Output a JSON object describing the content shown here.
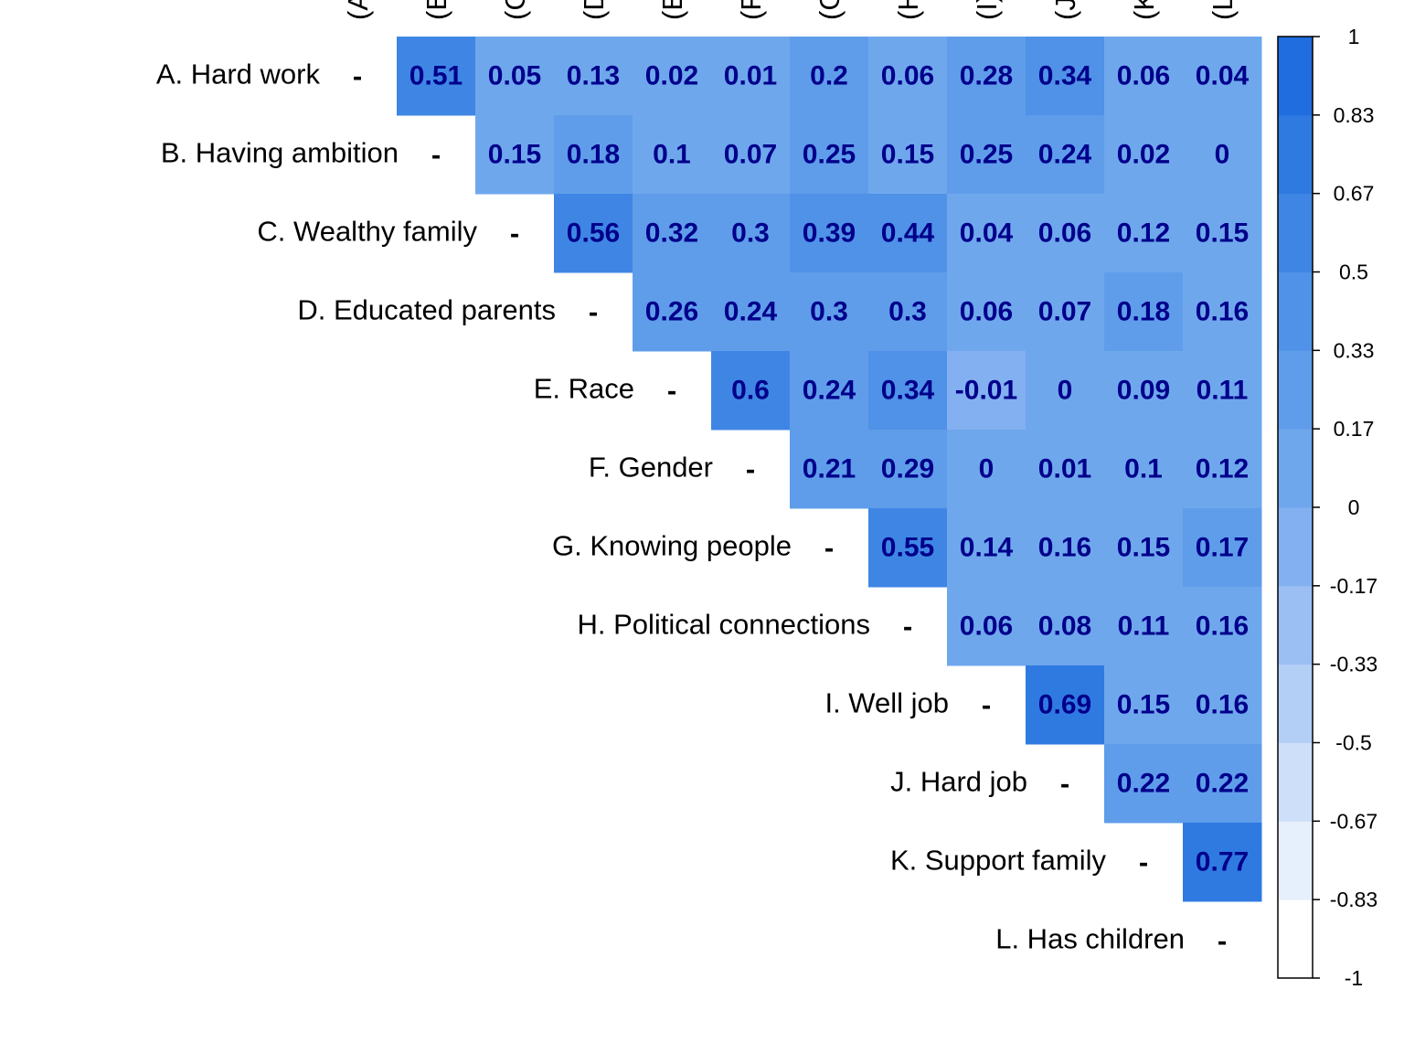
{
  "chart_data": {
    "type": "heatmap",
    "subtype": "upper-triangle correlation matrix",
    "row_labels": [
      "A. Hard work",
      "B. Having ambition",
      "C. Wealthy family",
      "D. Educated parents",
      "E. Race",
      "F. Gender",
      "G. Knowing people",
      "H. Political connections",
      "I. Well job",
      "J. Hard job",
      "K. Support family",
      "L. Has children"
    ],
    "column_labels": [
      "(A)",
      "(B)",
      "(C)",
      "(D)",
      "(E)",
      "(F)",
      "(G)",
      "(H)",
      "(I)",
      "(J)",
      "(K)",
      "(L)"
    ],
    "diagonal_label": "-",
    "matrix": [
      [
        null,
        0.51,
        0.05,
        0.13,
        0.02,
        0.01,
        0.2,
        0.06,
        0.28,
        0.34,
        0.06,
        0.04
      ],
      [
        null,
        null,
        0.15,
        0.18,
        0.1,
        0.07,
        0.25,
        0.15,
        0.25,
        0.24,
        0.02,
        0
      ],
      [
        null,
        null,
        null,
        0.56,
        0.32,
        0.3,
        0.39,
        0.44,
        0.04,
        0.06,
        0.12,
        0.15
      ],
      [
        null,
        null,
        null,
        null,
        0.26,
        0.24,
        0.3,
        0.3,
        0.06,
        0.07,
        0.18,
        0.16
      ],
      [
        null,
        null,
        null,
        null,
        null,
        0.6,
        0.24,
        0.34,
        -0.01,
        0,
        0.09,
        0.11
      ],
      [
        null,
        null,
        null,
        null,
        null,
        null,
        0.21,
        0.29,
        0,
        0.01,
        0.1,
        0.12
      ],
      [
        null,
        null,
        null,
        null,
        null,
        null,
        null,
        0.55,
        0.14,
        0.16,
        0.15,
        0.17
      ],
      [
        null,
        null,
        null,
        null,
        null,
        null,
        null,
        null,
        0.06,
        0.08,
        0.11,
        0.16
      ],
      [
        null,
        null,
        null,
        null,
        null,
        null,
        null,
        null,
        null,
        0.69,
        0.15,
        0.16
      ],
      [
        null,
        null,
        null,
        null,
        null,
        null,
        null,
        null,
        null,
        null,
        0.22,
        0.22
      ],
      [
        null,
        null,
        null,
        null,
        null,
        null,
        null,
        null,
        null,
        null,
        null,
        0.77
      ],
      [
        null,
        null,
        null,
        null,
        null,
        null,
        null,
        null,
        null,
        null,
        null,
        null
      ]
    ],
    "colorbar": {
      "range": [
        -1,
        1
      ],
      "ticks": [
        "1",
        "0.83",
        "0.67",
        "0.5",
        "0.33",
        "0.17",
        "0",
        "-0.17",
        "-0.33",
        "-0.5",
        "-0.67",
        "-0.83",
        "-1"
      ],
      "color_steps_low_to_high": [
        "#ffffff",
        "#e6effc",
        "#cddff9",
        "#b4cff6",
        "#9bbff3",
        "#83b0f0",
        "#6fa7ed",
        "#5f9dea",
        "#4f92e7",
        "#3f86e4",
        "#2f7ae1",
        "#1f6dde"
      ]
    },
    "value_text_color": "#00008b"
  }
}
